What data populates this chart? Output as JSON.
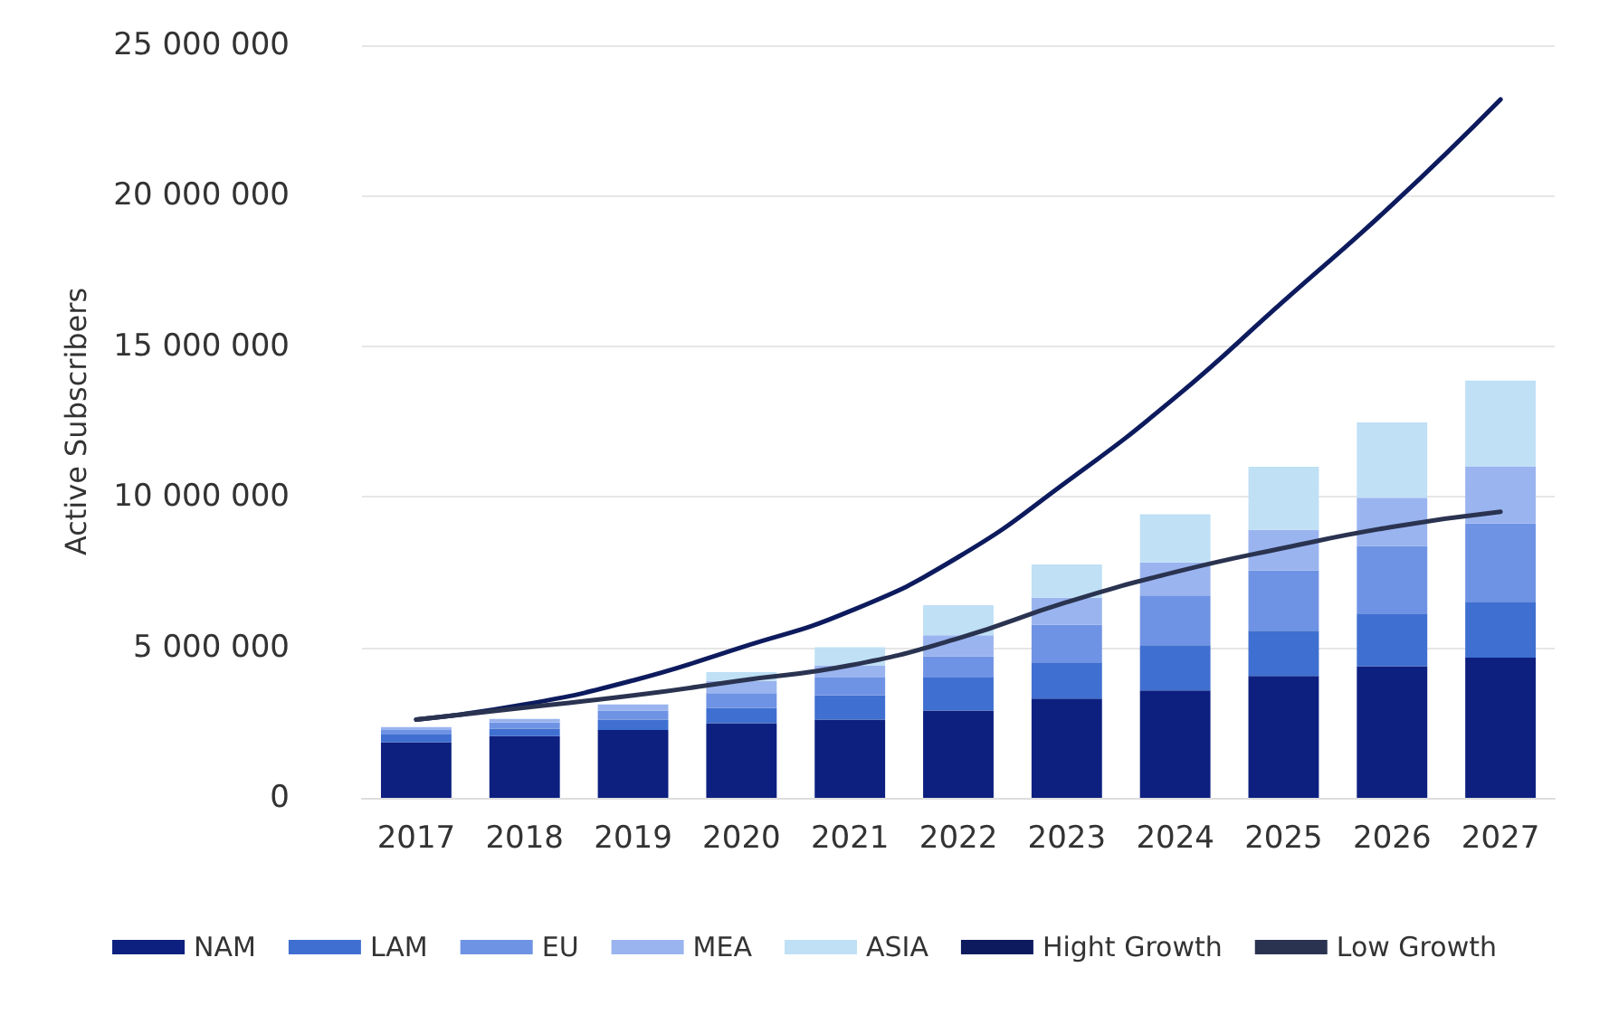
{
  "chart_data": {
    "type": "bar",
    "stacked": true,
    "ylabel": "Active Subscribers",
    "categories": [
      "2017",
      "2018",
      "2019",
      "2020",
      "2021",
      "2022",
      "2023",
      "2024",
      "2025",
      "2026",
      "2027"
    ],
    "series": [
      {
        "name": "NAM",
        "color": "#0d2080",
        "values": [
          1850000,
          2050000,
          2250000,
          2480000,
          2600000,
          2900000,
          3300000,
          3570000,
          4050000,
          4370000,
          4660000
        ]
      },
      {
        "name": "LAM",
        "color": "#3f6fd0",
        "values": [
          250000,
          250000,
          350000,
          500000,
          800000,
          1100000,
          1200000,
          1500000,
          1500000,
          1750000,
          1850000
        ]
      },
      {
        "name": "EU",
        "color": "#6f93e4",
        "values": [
          150000,
          200000,
          300000,
          500000,
          600000,
          700000,
          1250000,
          1650000,
          2000000,
          2250000,
          2600000
        ]
      },
      {
        "name": "MEA",
        "color": "#9ab4ef",
        "values": [
          100000,
          120000,
          200000,
          400000,
          400000,
          700000,
          900000,
          1100000,
          1350000,
          1600000,
          1900000
        ]
      },
      {
        "name": "ASIA",
        "color": "#bfe0f5",
        "values": [
          null,
          null,
          null,
          300000,
          600000,
          1000000,
          1100000,
          1600000,
          2100000,
          2500000,
          2850000
        ]
      },
      {
        "name": "Hight Growth",
        "type": "line",
        "color": "#0d1b5e",
        "values": [
          2600000,
          3100000,
          3900000,
          5000000,
          6200000,
          8000000,
          10500000,
          13300000,
          16500000,
          19700000,
          23200000
        ]
      },
      {
        "name": "Low Growth",
        "type": "line",
        "color": "#2a3350",
        "values": [
          2600000,
          3000000,
          3400000,
          3900000,
          4400000,
          5300000,
          6500000,
          7500000,
          8300000,
          9000000,
          9500000
        ]
      }
    ],
    "ylim": [
      0,
      25000000
    ],
    "yticks": [
      {
        "value": 0,
        "label": "0"
      },
      {
        "value": 5000000,
        "label": "5 000 000"
      },
      {
        "value": 10000000,
        "label": "10 000 000"
      },
      {
        "value": 15000000,
        "label": "15 000 000"
      },
      {
        "value": 20000000,
        "label": "20 000 000"
      },
      {
        "value": 25000000,
        "label": "25 000 000"
      }
    ],
    "grid": "y",
    "legend": "bottom",
    "marker": "none",
    "line_style": "solid"
  }
}
